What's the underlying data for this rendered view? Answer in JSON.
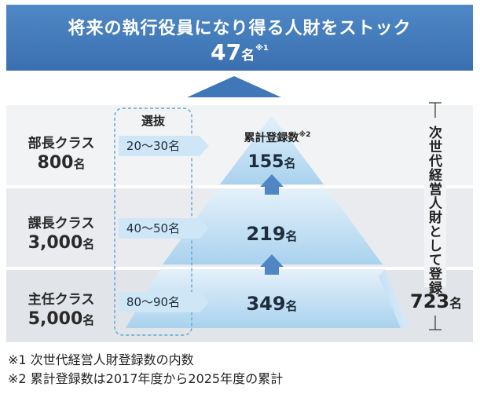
{
  "header": {
    "title": "将来の執行役員になり得る人財をストック",
    "total_value": "47",
    "total_unit": "名",
    "total_note_mark": "※1"
  },
  "selection_label": "選抜",
  "registered_label": "累計登録数",
  "registered_note_mark": "※2",
  "tiers": [
    {
      "class_name": "部長クラス",
      "count": "800",
      "count_unit": "名",
      "selection": "20〜30名",
      "registered": "155",
      "registered_unit": "名"
    },
    {
      "class_name": "課長クラス",
      "count": "3,000",
      "count_unit": "名",
      "selection": "40〜50名",
      "registered": "219",
      "registered_unit": "名"
    },
    {
      "class_name": "主任クラス",
      "count": "5,000",
      "count_unit": "名",
      "selection": "80〜90名",
      "registered": "349",
      "registered_unit": "名"
    }
  ],
  "side_label": "次世代経営人財として登録",
  "side_total": "723",
  "side_total_unit": "名",
  "notes": [
    "※1 次世代経営人財登録数の内数",
    "※2 累計登録数は2017年度から2025年度の累計"
  ],
  "colors": {
    "banner": "#3f77b8",
    "pyramid_light": "#d7e9f6",
    "pyramid_dark": "#9ccbea",
    "arrow": "#4f86c3",
    "pill": "#cfe6f6",
    "selection_border": "#5aa6d8"
  }
}
